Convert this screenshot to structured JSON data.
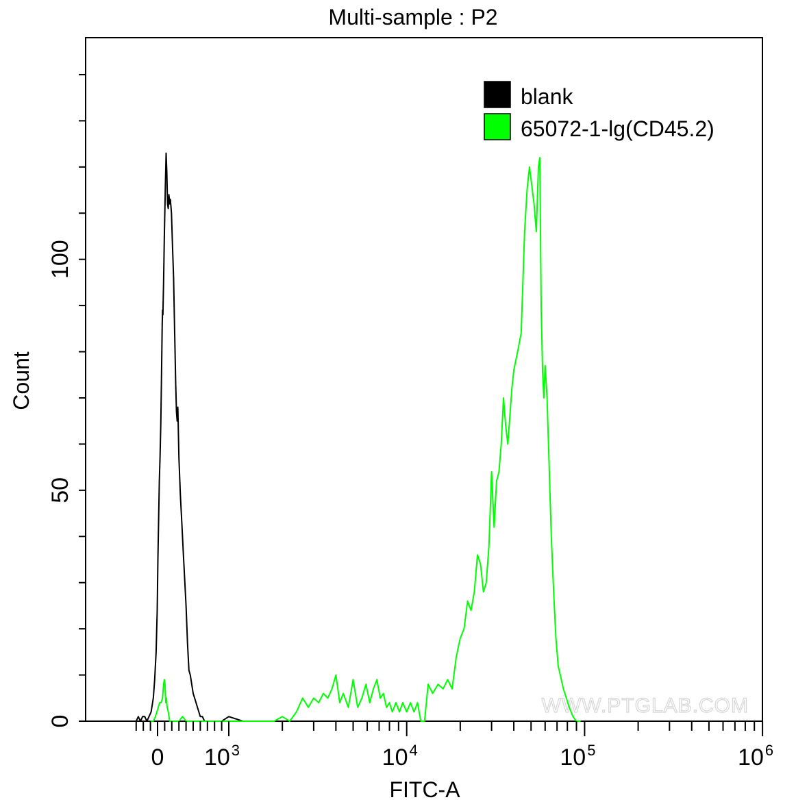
{
  "chart_data": {
    "type": "line",
    "title": "Multi-sample : P2",
    "xlabel": "FITC-A",
    "ylabel": "Count",
    "x_scale": "biexponential",
    "xlim": [
      -300,
      1000000
    ],
    "ylim": [
      0,
      148
    ],
    "x_tick_labels": [
      {
        "value": 0,
        "base": "0",
        "exp": ""
      },
      {
        "value": 1000,
        "base": "10",
        "exp": "3"
      },
      {
        "value": 10000,
        "base": "10",
        "exp": "4"
      },
      {
        "value": 100000,
        "base": "10",
        "exp": "5"
      },
      {
        "value": 1000000,
        "base": "10",
        "exp": "6"
      }
    ],
    "y_ticks": [
      0,
      50,
      100
    ],
    "y_minor_ticks": [
      0,
      10,
      20,
      30,
      40,
      50,
      60,
      70,
      80,
      90,
      100,
      110,
      120,
      130,
      140
    ],
    "legend": {
      "position": "top-right"
    },
    "watermark": "WWW.PTGLAB.COM",
    "series": [
      {
        "name": "blank",
        "color": "#000000",
        "points": [
          [
            -300,
            0
          ],
          [
            -270,
            1
          ],
          [
            -240,
            0
          ],
          [
            -210,
            1
          ],
          [
            -180,
            1
          ],
          [
            -150,
            0
          ],
          [
            -120,
            1
          ],
          [
            -90,
            2
          ],
          [
            -60,
            5
          ],
          [
            -40,
            9
          ],
          [
            -20,
            15
          ],
          [
            -5,
            24
          ],
          [
            5,
            35
          ],
          [
            15,
            44
          ],
          [
            25,
            52
          ],
          [
            35,
            57
          ],
          [
            45,
            64
          ],
          [
            55,
            74
          ],
          [
            65,
            86
          ],
          [
            70,
            89
          ],
          [
            75,
            88
          ],
          [
            85,
            95
          ],
          [
            95,
            105
          ],
          [
            110,
            116
          ],
          [
            120,
            123
          ],
          [
            130,
            119
          ],
          [
            140,
            112
          ],
          [
            150,
            111
          ],
          [
            160,
            114
          ],
          [
            170,
            112
          ],
          [
            180,
            113
          ],
          [
            195,
            110
          ],
          [
            210,
            103
          ],
          [
            225,
            96
          ],
          [
            240,
            84
          ],
          [
            255,
            73
          ],
          [
            265,
            67
          ],
          [
            275,
            65
          ],
          [
            285,
            68
          ],
          [
            300,
            57
          ],
          [
            320,
            49
          ],
          [
            340,
            43
          ],
          [
            360,
            37
          ],
          [
            380,
            31
          ],
          [
            400,
            25
          ],
          [
            420,
            17
          ],
          [
            440,
            11
          ],
          [
            460,
            10
          ],
          [
            480,
            8
          ],
          [
            500,
            6
          ],
          [
            520,
            5
          ],
          [
            540,
            4
          ],
          [
            560,
            3
          ],
          [
            580,
            2
          ],
          [
            600,
            1
          ],
          [
            630,
            1
          ],
          [
            660,
            0
          ],
          [
            700,
            0
          ],
          [
            800,
            0
          ],
          [
            900,
            0
          ],
          [
            1000,
            1
          ],
          [
            1200,
            0
          ],
          [
            1500,
            0
          ],
          [
            2000,
            0
          ]
        ]
      },
      {
        "name": "65072-1-lg(CD45.2)",
        "color": "#00ff00",
        "points": [
          [
            -100,
            0
          ],
          [
            -60,
            0
          ],
          [
            -30,
            1
          ],
          [
            -10,
            2
          ],
          [
            10,
            3
          ],
          [
            30,
            4
          ],
          [
            50,
            4
          ],
          [
            70,
            5
          ],
          [
            85,
            8
          ],
          [
            95,
            9
          ],
          [
            105,
            8
          ],
          [
            115,
            4
          ],
          [
            125,
            5
          ],
          [
            135,
            3
          ],
          [
            150,
            2
          ],
          [
            170,
            0
          ],
          [
            200,
            0
          ],
          [
            250,
            0
          ],
          [
            300,
            0
          ],
          [
            350,
            1
          ],
          [
            400,
            0
          ],
          [
            450,
            0
          ],
          [
            500,
            0
          ],
          [
            600,
            0
          ],
          [
            700,
            0
          ],
          [
            800,
            0
          ],
          [
            900,
            0
          ],
          [
            1000,
            0
          ],
          [
            1200,
            0
          ],
          [
            1500,
            0
          ],
          [
            1800,
            0
          ],
          [
            2000,
            1
          ],
          [
            2200,
            0
          ],
          [
            2400,
            2
          ],
          [
            2600,
            5
          ],
          [
            2800,
            3
          ],
          [
            3000,
            5
          ],
          [
            3200,
            4
          ],
          [
            3400,
            6
          ],
          [
            3600,
            5
          ],
          [
            3800,
            7
          ],
          [
            4000,
            10
          ],
          [
            4200,
            4
          ],
          [
            4400,
            6
          ],
          [
            4700,
            3
          ],
          [
            5000,
            9
          ],
          [
            5300,
            3
          ],
          [
            5600,
            5
          ],
          [
            5900,
            8
          ],
          [
            6200,
            4
          ],
          [
            6500,
            7
          ],
          [
            6800,
            9
          ],
          [
            7100,
            5
          ],
          [
            7400,
            6
          ],
          [
            7700,
            3
          ],
          [
            8000,
            4
          ],
          [
            8300,
            2
          ],
          [
            8700,
            4
          ],
          [
            9100,
            2
          ],
          [
            9500,
            4
          ],
          [
            10000,
            2
          ],
          [
            10500,
            4
          ],
          [
            11000,
            2
          ],
          [
            11500,
            4
          ],
          [
            12000,
            0
          ],
          [
            12600,
            0
          ],
          [
            13200,
            8
          ],
          [
            14000,
            6
          ],
          [
            15000,
            8
          ],
          [
            16000,
            7
          ],
          [
            17000,
            9
          ],
          [
            18000,
            7
          ],
          [
            19000,
            14
          ],
          [
            20000,
            18
          ],
          [
            21000,
            20
          ],
          [
            22000,
            26
          ],
          [
            23000,
            24
          ],
          [
            24000,
            28
          ],
          [
            25000,
            36
          ],
          [
            26000,
            34
          ],
          [
            27000,
            28
          ],
          [
            28000,
            30
          ],
          [
            29000,
            38
          ],
          [
            30000,
            54
          ],
          [
            31000,
            42
          ],
          [
            32000,
            52
          ],
          [
            33000,
            54
          ],
          [
            34000,
            60
          ],
          [
            35000,
            70
          ],
          [
            36000,
            64
          ],
          [
            37000,
            60
          ],
          [
            38000,
            66
          ],
          [
            39000,
            72
          ],
          [
            40000,
            76
          ],
          [
            42000,
            80
          ],
          [
            44000,
            84
          ],
          [
            46000,
            106
          ],
          [
            47500,
            115
          ],
          [
            49000,
            120
          ],
          [
            50500,
            116
          ],
          [
            52000,
            112
          ],
          [
            53500,
            106
          ],
          [
            55000,
            120
          ],
          [
            56000,
            122
          ],
          [
            57000,
            90
          ],
          [
            58000,
            76
          ],
          [
            59000,
            70
          ],
          [
            60000,
            77
          ],
          [
            61500,
            70
          ],
          [
            63000,
            57
          ],
          [
            65000,
            40
          ],
          [
            67000,
            28
          ],
          [
            69000,
            18
          ],
          [
            71000,
            12
          ],
          [
            73000,
            10
          ],
          [
            76000,
            7
          ],
          [
            79000,
            5
          ],
          [
            82000,
            3
          ],
          [
            86000,
            1
          ],
          [
            90000,
            0
          ],
          [
            95000,
            0
          ]
        ]
      }
    ]
  }
}
